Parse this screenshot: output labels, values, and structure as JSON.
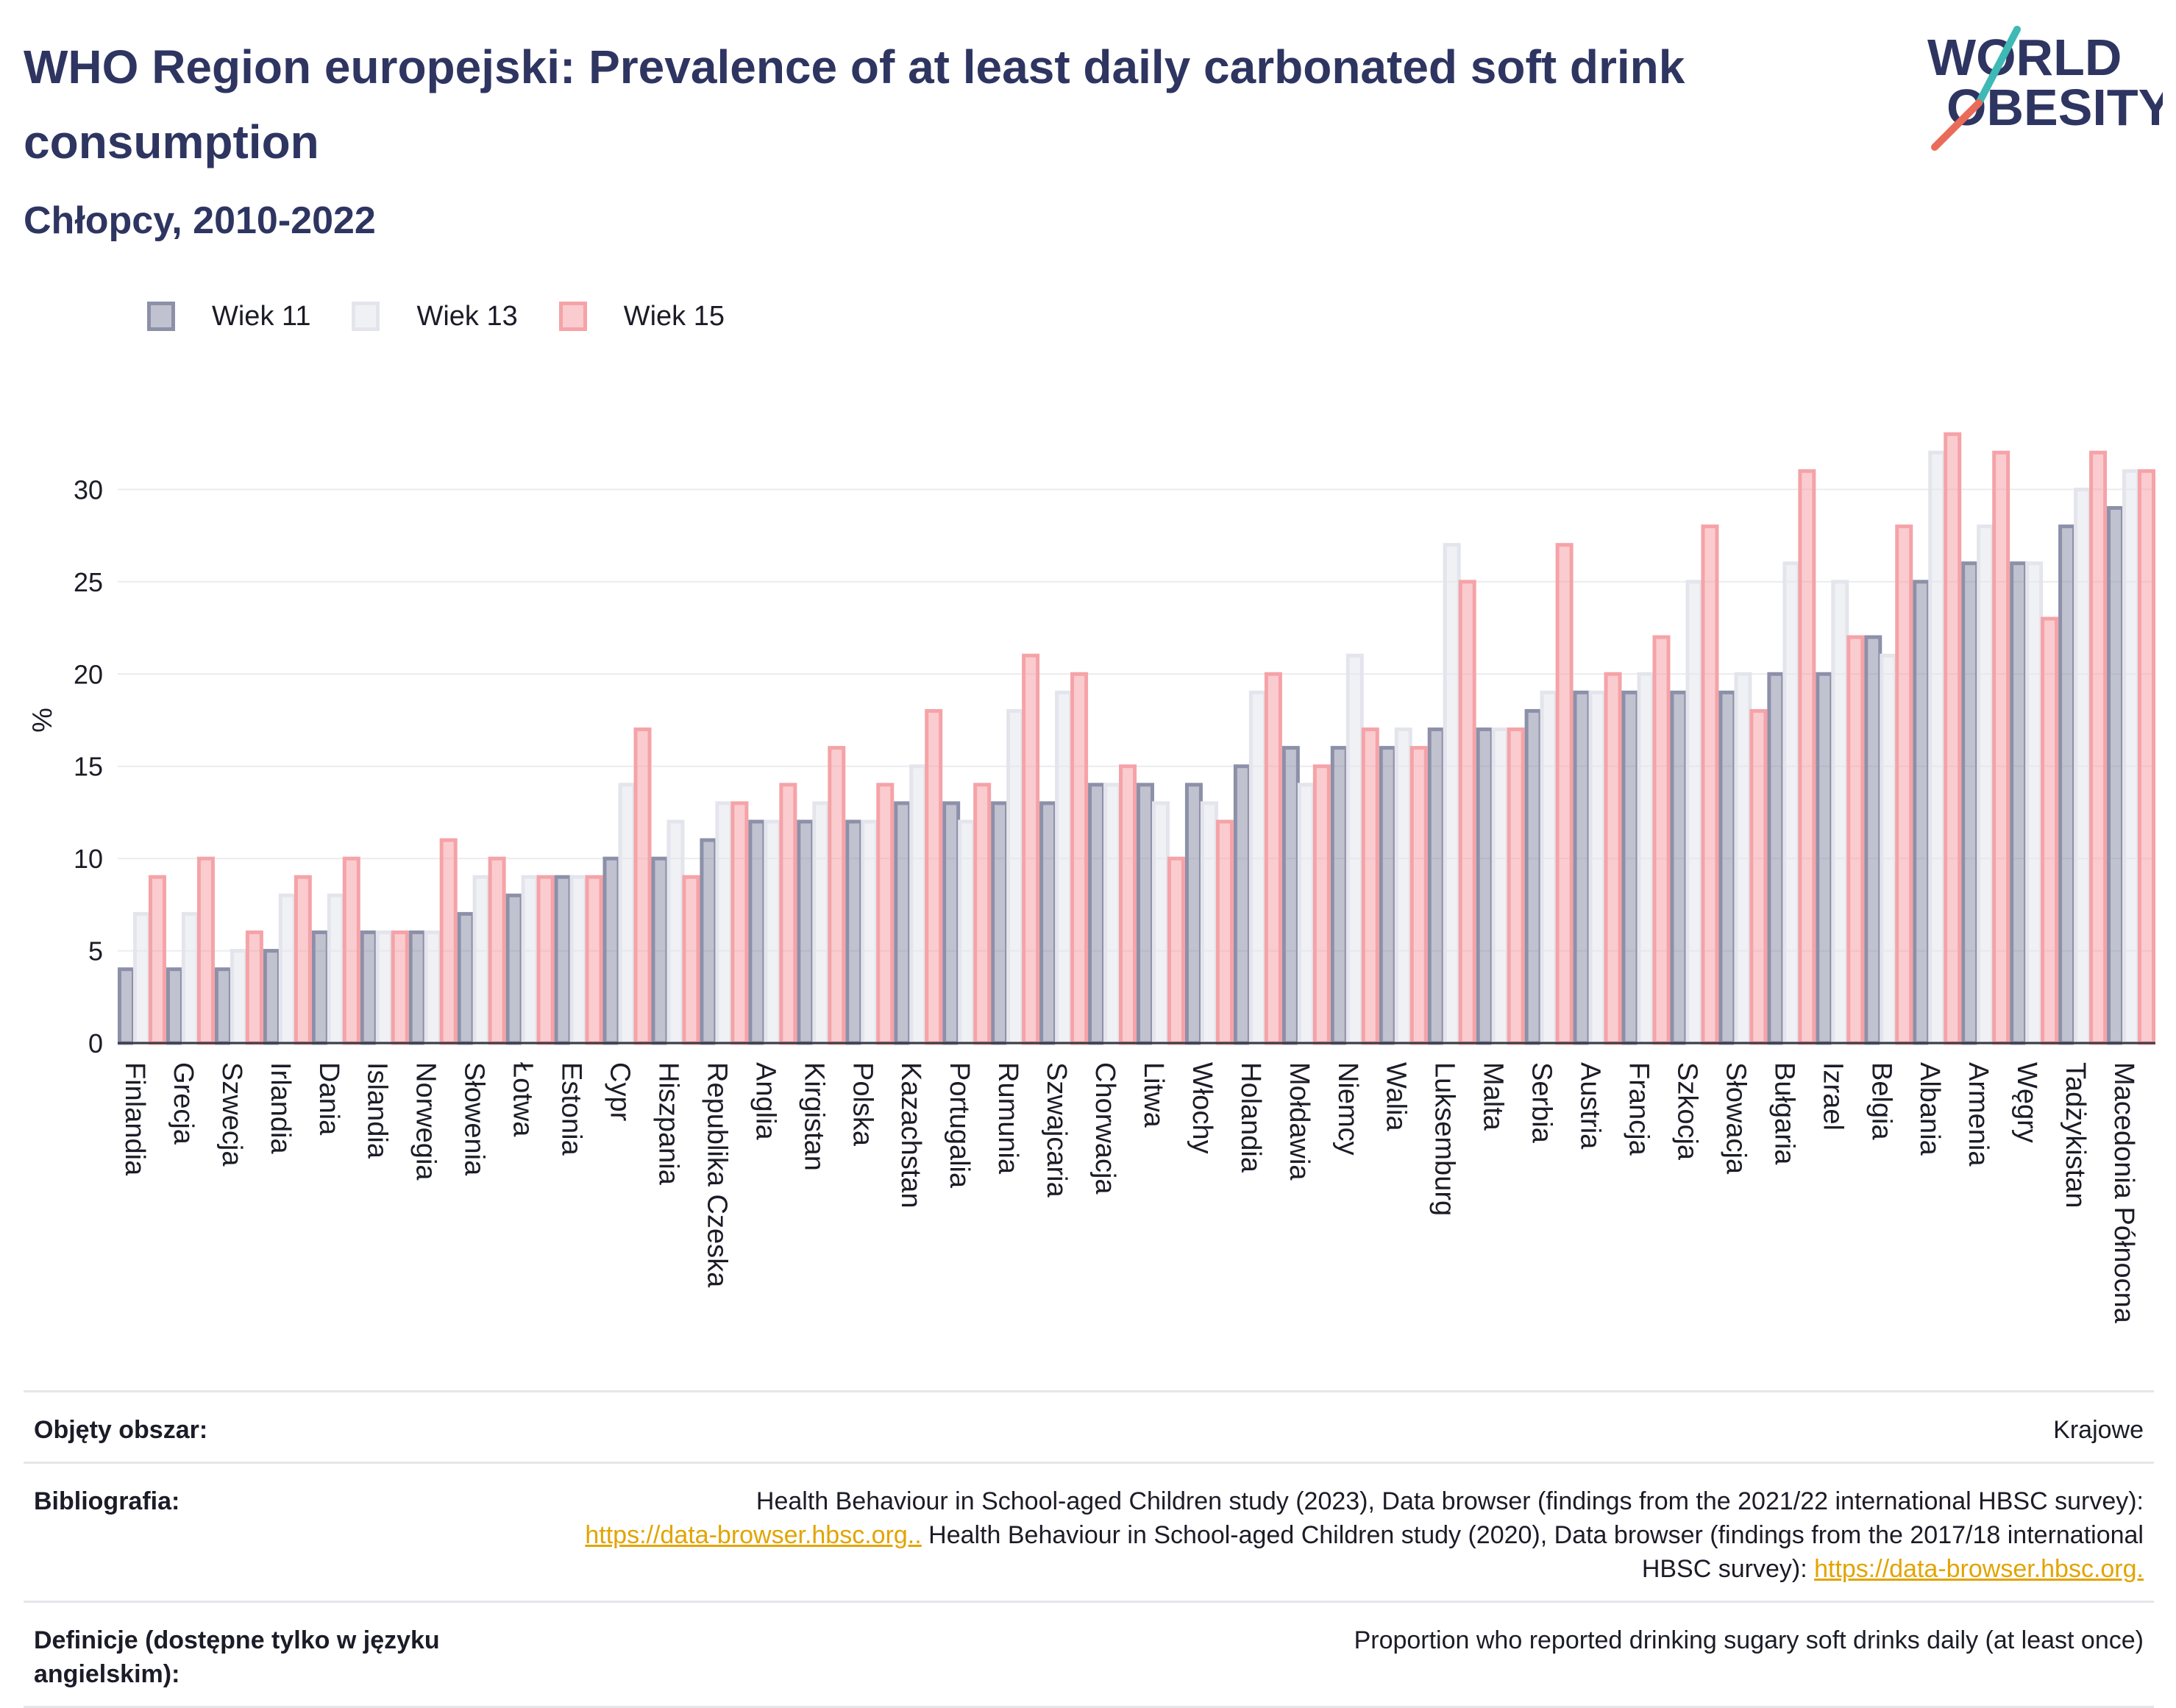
{
  "title": "WHO Region europejski: Prevalence of at least daily carbonated soft drink consumption",
  "subtitle": "Chłopcy, 2010-2022",
  "logo": {
    "line1": "WORLD",
    "line2": "OBESITY"
  },
  "chart_data": {
    "type": "bar",
    "ylabel": "%",
    "ylim": [
      0,
      35
    ],
    "yticks": [
      0,
      5,
      10,
      15,
      20,
      25,
      30
    ],
    "grid": true,
    "legend_position": "top-left",
    "categories": [
      "Finlandia",
      "Grecja",
      "Szwecja",
      "Irlandia",
      "Dania",
      "Islandia",
      "Norwegia",
      "Słowenia",
      "Łotwa",
      "Estonia",
      "Cypr",
      "Hiszpania",
      "Republika Czeska",
      "Anglia",
      "Kirgistan",
      "Polska",
      "Kazachstan",
      "Portugalia",
      "Rumunia",
      "Szwajcaria",
      "Chorwacja",
      "Litwa",
      "Włochy",
      "Holandia",
      "Mołdawia",
      "Niemcy",
      "Walia",
      "Luksemburg",
      "Malta",
      "Serbia",
      "Austria",
      "Francja",
      "Szkocja",
      "Słowacja",
      "Bułgaria",
      "Izrael",
      "Belgia",
      "Albania",
      "Armenia",
      "Węgry",
      "Tadżykistan",
      "Macedonia Północna"
    ],
    "series": [
      {
        "name": "Wiek 11",
        "color": "#8c90a8",
        "values": [
          4,
          4,
          4,
          5,
          6,
          6,
          6,
          7,
          8,
          9,
          10,
          10,
          11,
          12,
          12,
          12,
          13,
          13,
          13,
          13,
          14,
          14,
          14,
          15,
          16,
          16,
          16,
          17,
          17,
          18,
          19,
          19,
          19,
          19,
          20,
          20,
          22,
          25,
          26,
          26,
          28,
          29
        ]
      },
      {
        "name": "Wiek 13",
        "color": "#e4e5ec",
        "values": [
          7,
          7,
          5,
          8,
          8,
          6,
          6,
          9,
          9,
          9,
          14,
          12,
          13,
          12,
          13,
          12,
          15,
          12,
          18,
          19,
          14,
          13,
          13,
          19,
          14,
          21,
          17,
          27,
          17,
          19,
          19,
          20,
          25,
          20,
          26,
          25,
          21,
          32,
          28,
          26,
          30,
          31
        ]
      },
      {
        "name": "Wiek 15",
        "color": "#f5a3a8",
        "values": [
          9,
          10,
          6,
          9,
          10,
          6,
          11,
          10,
          9,
          9,
          17,
          9,
          13,
          14,
          16,
          14,
          18,
          14,
          21,
          20,
          15,
          10,
          12,
          20,
          15,
          17,
          16,
          25,
          17,
          27,
          20,
          22,
          28,
          18,
          31,
          22,
          28,
          33,
          32,
          23,
          32,
          31
        ]
      }
    ]
  },
  "footer": {
    "coverage_label": "Objęty obszar:",
    "coverage_value": "Krajowe",
    "bibliography_label": "Bibliografia:",
    "bib_text1": "Health Behaviour in School-aged Children study (2023), Data browser (findings from the 2021/22 international HBSC survey):",
    "bib_link1": "https://data-browser.hbsc.org..",
    "bib_text2": " Health Behaviour in School-aged Children study (2020), Data browser (findings from the 2017/18 international HBSC survey): ",
    "bib_link2": "https://data-browser.hbsc.org.",
    "definitions_label": "Definicje (dostępne tylko w języku angielskim):",
    "definitions_value": "Proportion who reported drinking sugary soft drinks daily (at least once)"
  }
}
